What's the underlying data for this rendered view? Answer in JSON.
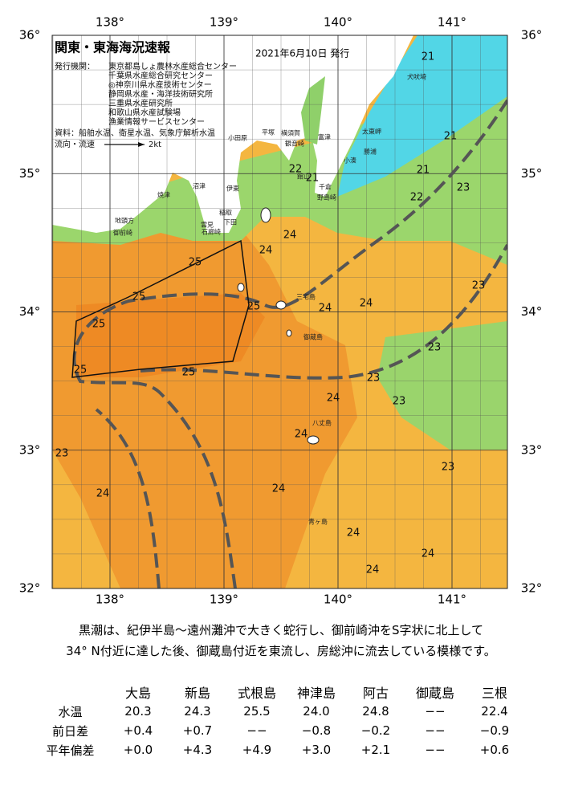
{
  "map": {
    "title": "関東・東海海況速報",
    "issued": "2021年6月10日 発行",
    "agencies_label": "発行機関：",
    "agencies": [
      "東京都島しょ農林水産総合センター",
      "千葉県水産総合研究センター",
      "◎神奈川県水産技術センター",
      "静岡県水産・海洋技術研究所",
      "三重県水産研究所",
      "和歌山県水産試験場",
      "漁業情報サービスセンター"
    ],
    "source": "資料：船舶水温、衛星水温、気象庁解析水温",
    "legend_label": "流向・流速",
    "legend_speed": "2kt",
    "xticks": [
      {
        "value": 138,
        "label": "138°"
      },
      {
        "value": 139,
        "label": "139°"
      },
      {
        "value": 140,
        "label": "140°"
      },
      {
        "value": 141,
        "label": "141°"
      }
    ],
    "yticks": [
      {
        "value": 32,
        "label": "32°"
      },
      {
        "value": 33,
        "label": "33°"
      },
      {
        "value": 34,
        "label": "34°"
      },
      {
        "value": 35,
        "label": "35°"
      },
      {
        "value": 36,
        "label": "36°"
      }
    ],
    "contour_labels": [
      21,
      21,
      21,
      21,
      22,
      22,
      23,
      24,
      25,
      24,
      25,
      25,
      24,
      24,
      23,
      25,
      23,
      25,
      25,
      23,
      24,
      23,
      24,
      23,
      23,
      24,
      24,
      24,
      24,
      24
    ],
    "place_labels": [
      "焼津",
      "地頭方",
      "御前崎",
      "沼津",
      "伊東",
      "稲取",
      "下田",
      "雲見",
      "石廊崎",
      "小田原",
      "平塚",
      "横須賀",
      "観音崎",
      "富津",
      "館山",
      "千倉",
      "野島崎",
      "小湊",
      "勝浦",
      "太東岬",
      "犬吠埼",
      "三宅島",
      "御蔵島",
      "八丈島",
      "青ヶ島"
    ]
  },
  "summary": [
    "黒潮は、紀伊半島～遠州灘沖で大きく蛇行し、御前崎沖をS字状に北上して",
    "34° N付近に達した後、御蔵島付近を東流し、房総沖に流去している模様です。"
  ],
  "table": {
    "columns": [
      "大島",
      "新島",
      "式根島",
      "神津島",
      "阿古",
      "御蔵島",
      "三根"
    ],
    "rows": [
      {
        "label": "水温",
        "values": [
          "20.3",
          "24.3",
          "25.5",
          "24.0",
          "24.8",
          "−−",
          "22.4"
        ]
      },
      {
        "label": "前日差",
        "values": [
          "+0.4",
          "+0.7",
          "−−",
          "−0.8",
          "−0.2",
          "−−",
          "−0.9"
        ]
      },
      {
        "label": "平年偏差",
        "values": [
          "+0.0",
          "+4.3",
          "+4.9",
          "+3.0",
          "+2.1",
          "−−",
          "+0.6"
        ]
      }
    ]
  }
}
